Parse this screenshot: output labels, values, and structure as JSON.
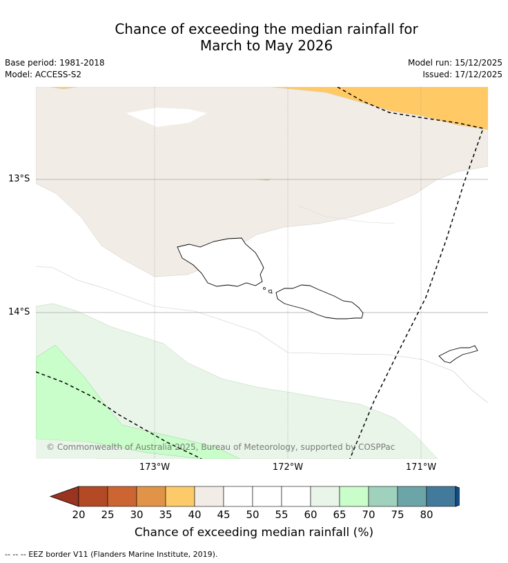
{
  "title": {
    "line1": "Chance of exceeding the median rainfall for",
    "line2": "March to May 2026"
  },
  "meta": {
    "base_period": "Base period: 1981-2018",
    "model": "Model: ACCESS-S2",
    "model_run": "Model run: 15/12/2025",
    "issued": "Issued: 17/12/2025"
  },
  "axes": {
    "lat_labels": [
      "13°S",
      "14°S"
    ],
    "lon_labels": [
      "173°W",
      "172°W",
      "171°W"
    ]
  },
  "map": {
    "copyright": "© Commonwealth of Australia 2025, Bureau of Meteorology, supported by COSPPac",
    "region_colors": {
      "orange_40_45": "#ffca66",
      "beige_45_50": "#f1ece6",
      "white_50_60": "#ffffff",
      "lightgreen_60_65": "#e9f5e9",
      "green_65_70": "#c9fdc9"
    }
  },
  "colorbar": {
    "ticks": [
      "20",
      "25",
      "30",
      "35",
      "40",
      "45",
      "50",
      "55",
      "60",
      "65",
      "70",
      "75",
      "80"
    ],
    "colors": [
      "#b34a25",
      "#cd6532",
      "#e19447",
      "#fdca6a",
      "#f1ece6",
      "#ffffff",
      "#ffffff",
      "#ffffff",
      "#e9f5e9",
      "#c9fdc9",
      "#9fd1bd",
      "#6ca5a8",
      "#437a9c"
    ],
    "under_color": "#98341f",
    "over_color": "#154e84",
    "label": "Chance of exceeding median rainfall (%)"
  },
  "footer": {
    "eez_note": "--  --  -- EEZ border V11 (Flanders Marine Institute, 2019)."
  }
}
